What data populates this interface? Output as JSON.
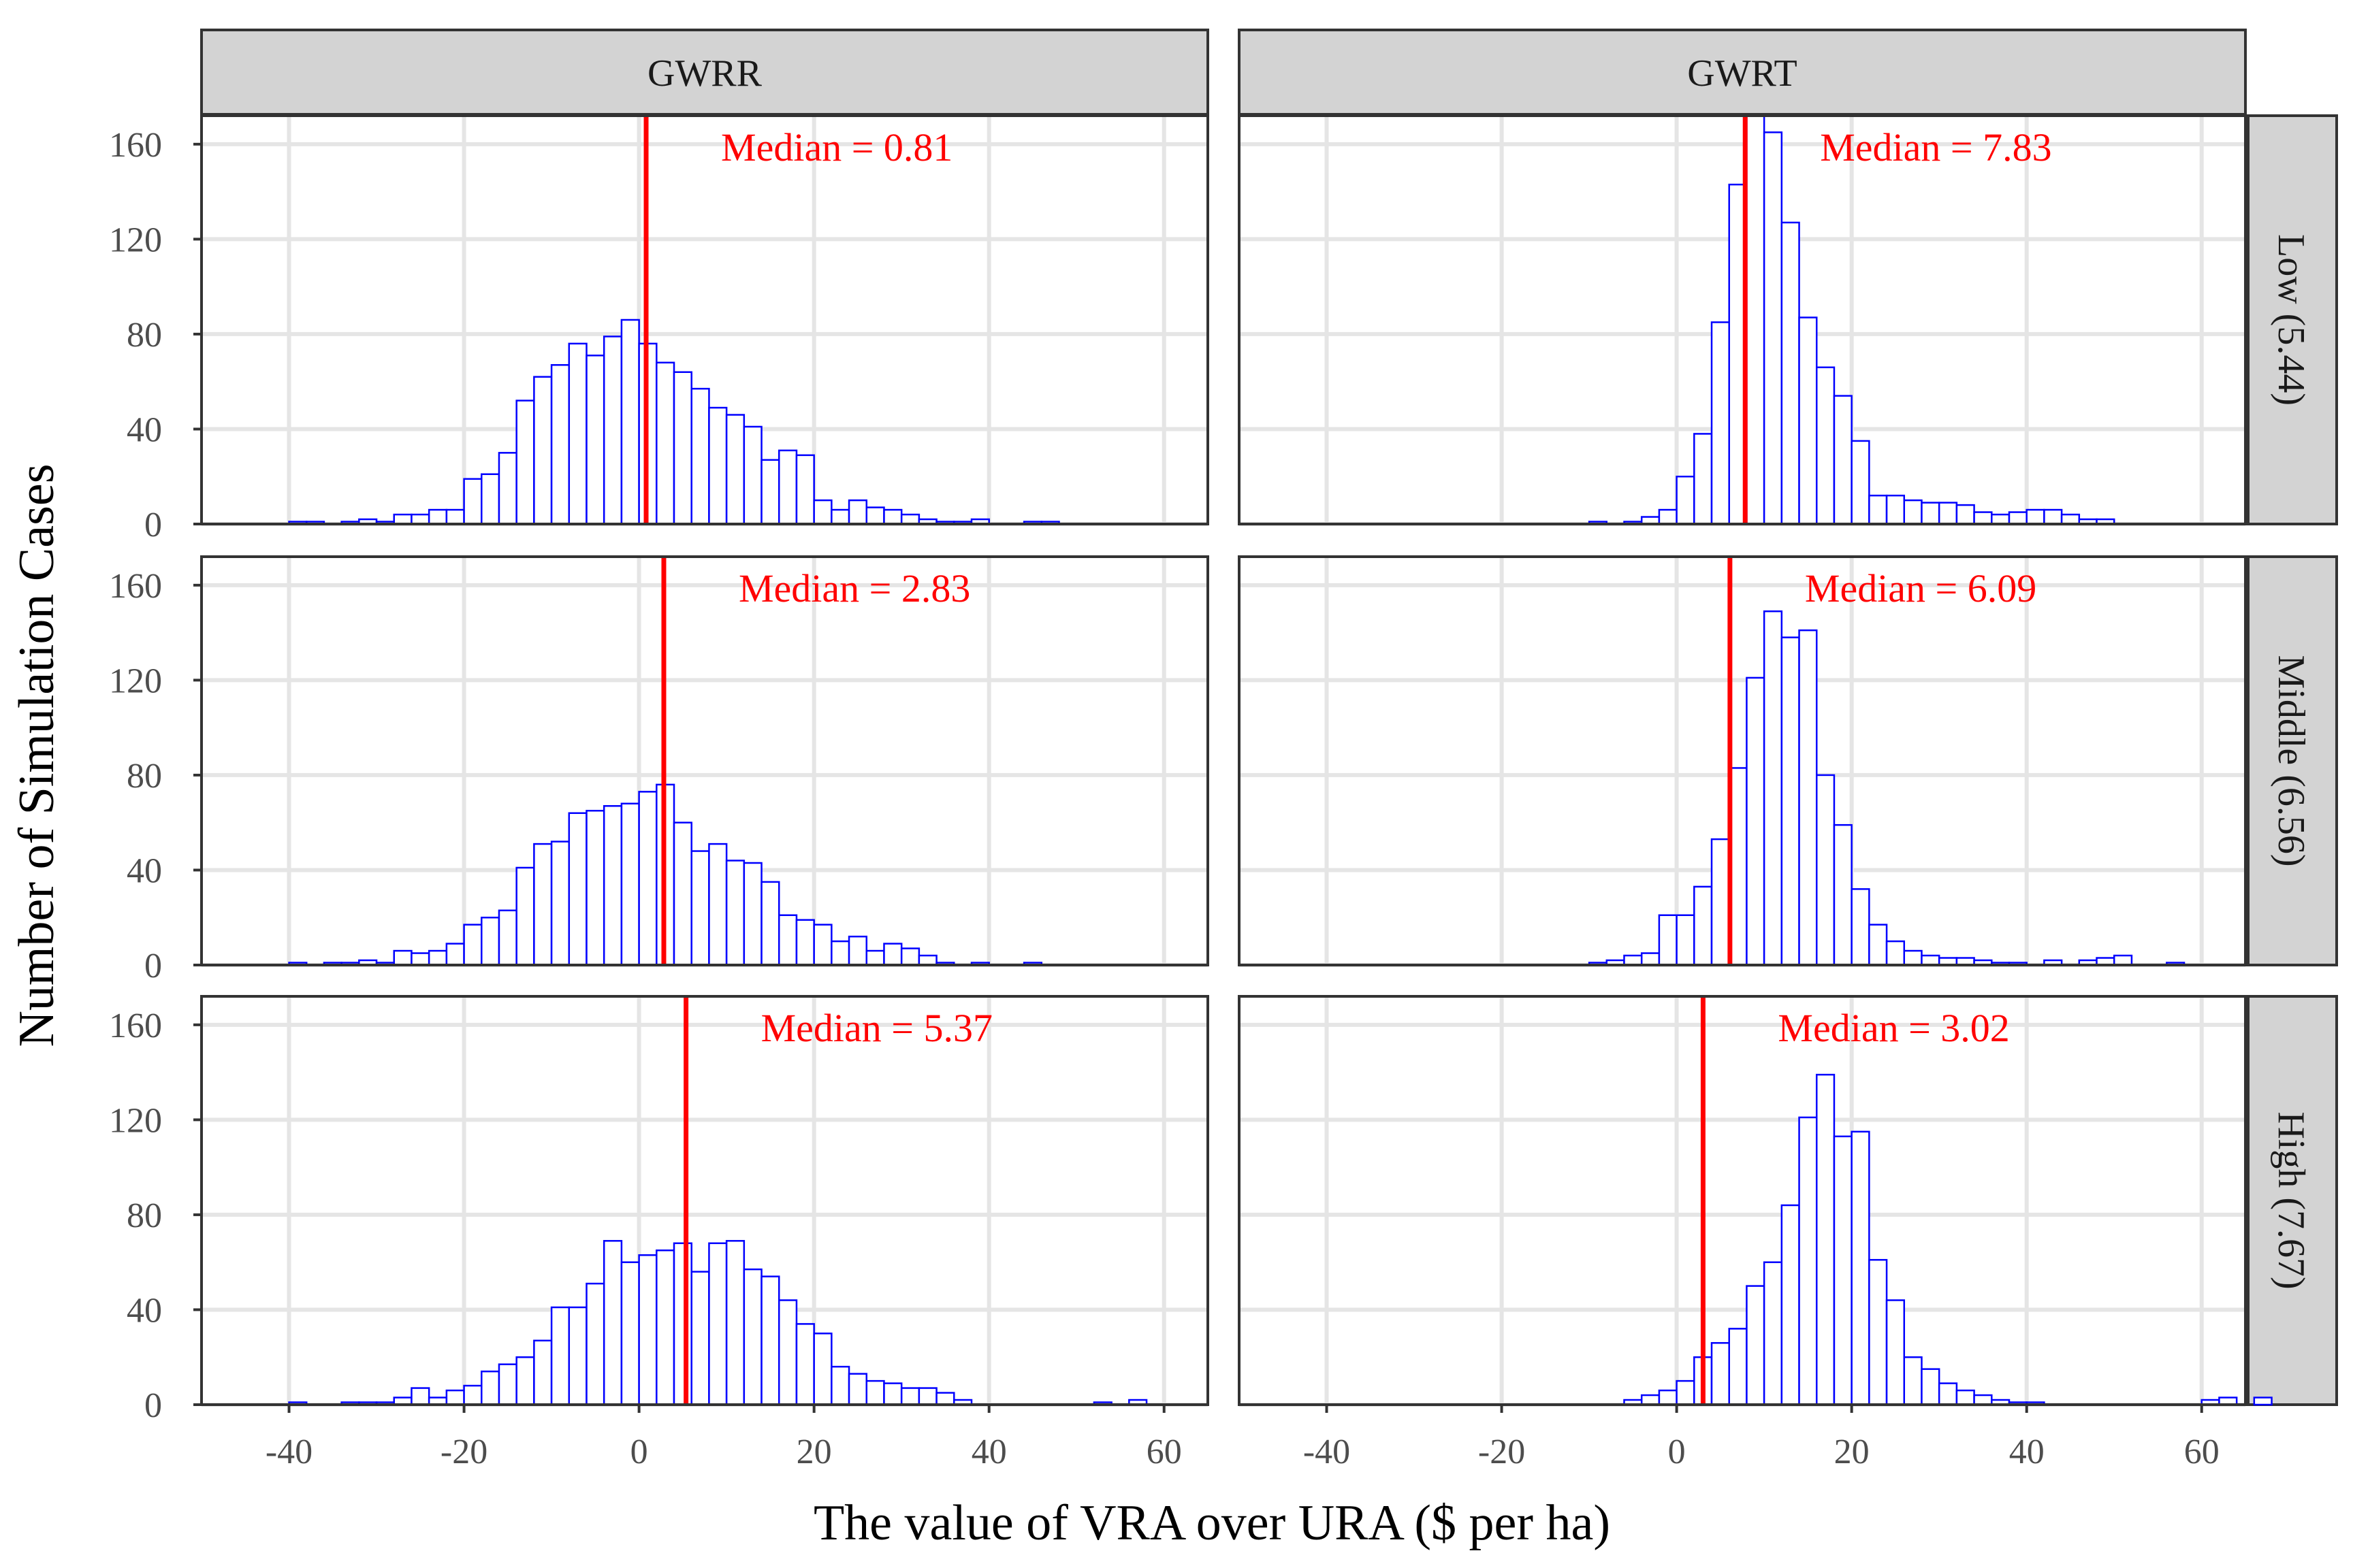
{
  "chart_data": {
    "type": "bar",
    "subtype": "faceted-histogram",
    "xlabel": "The value of VRA over URA ($ per ha)",
    "ylabel": "Number of Simulation Cases",
    "xlim": [
      -50,
      65
    ],
    "ylim": [
      0,
      172
    ],
    "xticks": [
      -40,
      -20,
      0,
      20,
      40,
      60
    ],
    "yticks": [
      0,
      40,
      80,
      120,
      160
    ],
    "bin_start": -40,
    "bin_width": 2,
    "grid": true,
    "colors": {
      "bar_edge": "#0000ff",
      "bar_fill": "#ffffff",
      "median_line": "#ff0000",
      "strip_bg": "#d3d3d3",
      "grid": "#e5e5e5"
    },
    "col_facets": [
      "GWRR",
      "GWRT"
    ],
    "row_facets": [
      "Low (5.44)",
      "Middle (6.56)",
      "High (7.67)"
    ],
    "panels": [
      {
        "col": 0,
        "row": 0,
        "median": 0.81,
        "median_label": "Median = 0.81",
        "counts": [
          1,
          1,
          0,
          1,
          2,
          1,
          4,
          4,
          6,
          6,
          19,
          21,
          30,
          52,
          62,
          67,
          76,
          71,
          79,
          86,
          76,
          68,
          64,
          57,
          49,
          46,
          41,
          27,
          31,
          29,
          10,
          6,
          10,
          7,
          6,
          4,
          2,
          1,
          1,
          2,
          0,
          0,
          1,
          1,
          0,
          0,
          0,
          0,
          0,
          0
        ]
      },
      {
        "col": 1,
        "row": 0,
        "median": 7.83,
        "median_label": "Median = 7.83",
        "counts": [
          0,
          0,
          0,
          0,
          0,
          0,
          0,
          0,
          0,
          0,
          0,
          0,
          0,
          0,
          0,
          1,
          0,
          1,
          3,
          6,
          20,
          38,
          85,
          143,
          174,
          165,
          127,
          87,
          66,
          54,
          35,
          12,
          12,
          10,
          9,
          9,
          8,
          5,
          4,
          5,
          6,
          6,
          4,
          2,
          2,
          0,
          0,
          0,
          0,
          0
        ]
      },
      {
        "col": 0,
        "row": 1,
        "median": 2.83,
        "median_label": "Median = 2.83",
        "counts": [
          1,
          0,
          1,
          1,
          2,
          1,
          6,
          5,
          6,
          9,
          17,
          20,
          23,
          41,
          51,
          52,
          64,
          65,
          67,
          68,
          73,
          76,
          60,
          48,
          51,
          44,
          43,
          35,
          21,
          19,
          17,
          10,
          12,
          6,
          9,
          7,
          4,
          1,
          0,
          1,
          0,
          0,
          1,
          0,
          0,
          0,
          0,
          0,
          0,
          0
        ]
      },
      {
        "col": 1,
        "row": 1,
        "median": 6.09,
        "median_label": "Median = 6.09",
        "counts": [
          0,
          0,
          0,
          0,
          0,
          0,
          0,
          0,
          0,
          0,
          0,
          0,
          0,
          0,
          0,
          1,
          2,
          4,
          5,
          21,
          21,
          33,
          53,
          83,
          121,
          149,
          138,
          141,
          80,
          59,
          32,
          17,
          10,
          6,
          4,
          3,
          3,
          2,
          1,
          1,
          0,
          2,
          0,
          2,
          3,
          4,
          0,
          0,
          1,
          0
        ]
      },
      {
        "col": 0,
        "row": 2,
        "median": 5.37,
        "median_label": "Median = 5.37",
        "counts": [
          1,
          0,
          0,
          1,
          1,
          1,
          3,
          7,
          3,
          6,
          8,
          14,
          17,
          20,
          27,
          41,
          41,
          51,
          69,
          60,
          63,
          65,
          68,
          56,
          68,
          69,
          57,
          54,
          44,
          34,
          30,
          16,
          13,
          10,
          9,
          7,
          7,
          5,
          2,
          0,
          0,
          0,
          0,
          0,
          0,
          0,
          1,
          0,
          2,
          0
        ]
      },
      {
        "col": 1,
        "row": 2,
        "median": 3.02,
        "median_label": "Median = 3.02",
        "counts": [
          0,
          0,
          0,
          0,
          0,
          0,
          0,
          0,
          0,
          0,
          0,
          0,
          0,
          0,
          0,
          0,
          0,
          2,
          4,
          6,
          10,
          20,
          26,
          32,
          50,
          60,
          84,
          121,
          139,
          113,
          115,
          61,
          44,
          20,
          15,
          9,
          6,
          4,
          2,
          1,
          1,
          0,
          0,
          0,
          0,
          0,
          0,
          0,
          0,
          0,
          2,
          3,
          0,
          3
        ]
      }
    ]
  }
}
